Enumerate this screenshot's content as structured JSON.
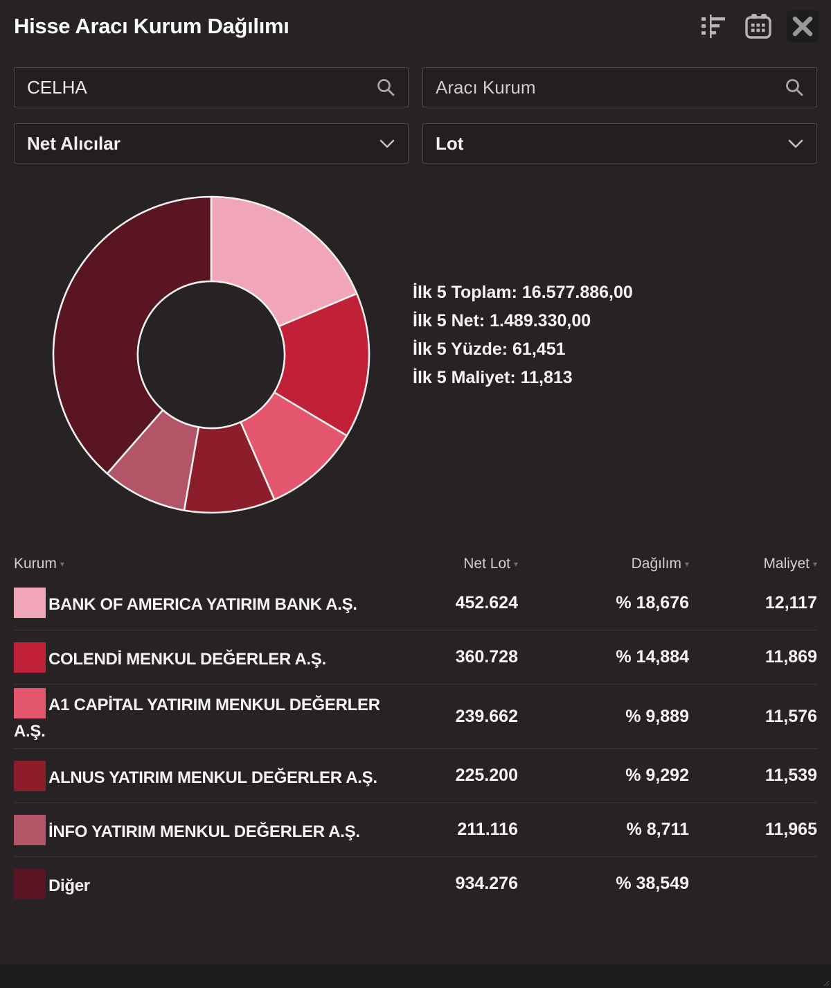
{
  "window": {
    "title": "Hisse Aracı Kurum Dağılımı"
  },
  "filters": {
    "symbol_input": {
      "value": "CELHA"
    },
    "broker_input": {
      "placeholder": "Aracı Kurum"
    },
    "side_select": {
      "value": "Net Alıcılar"
    },
    "unit_select": {
      "value": "Lot"
    }
  },
  "summary": [
    {
      "label": "İlk 5 Toplam:",
      "value": "16.577.886,00"
    },
    {
      "label": "İlk 5 Net:",
      "value": "1.489.330,00"
    },
    {
      "label": "İlk 5 Yüzde:",
      "value": "61,451"
    },
    {
      "label": "İlk 5 Maliyet:",
      "value": "11,813"
    }
  ],
  "chart_data": {
    "type": "pie",
    "subtype": "donut",
    "title": "",
    "legend_position": "none",
    "start_angle_deg": 0,
    "direction": "clockwise",
    "inner_radius_ratio": 0.465,
    "labels": [
      "BANK OF AMERICA YATIRIM BANK A.Ş.",
      "COLENDİ MENKUL DEĞERLER A.Ş.",
      "A1 CAPİTAL YATIRIM MENKUL DEĞERLER A.Ş.",
      "ALNUS YATIRIM MENKUL DEĞERLER A.Ş.",
      "İNFO YATIRIM MENKUL DEĞERLER A.Ş.",
      "Diğer"
    ],
    "values": [
      18.676,
      14.884,
      9.889,
      9.292,
      8.711,
      38.549
    ],
    "net_lot": [
      452624,
      360728,
      239662,
      225200,
      211116,
      934276
    ],
    "colors": [
      "#f0a6b8",
      "#c02138",
      "#e4566d",
      "#8c1e2c",
      "#b25566",
      "#591522"
    ],
    "stroke_color": "#f2efef"
  },
  "table": {
    "sort_indicator": "▾",
    "columns": [
      {
        "key": "kurum",
        "label": "Kurum"
      },
      {
        "key": "net-lot",
        "label": "Net Lot"
      },
      {
        "key": "dagilim",
        "label": "Dağılım"
      },
      {
        "key": "maliyet",
        "label": "Maliyet"
      }
    ],
    "rows": [
      {
        "name": "BANK OF AMERICA YATIRIM BANK A.Ş.",
        "net_lot": "452.624",
        "dagilim": "% 18,676",
        "maliyet": "12,117",
        "color": "#f0a6b8"
      },
      {
        "name": "COLENDİ MENKUL DEĞERLER A.Ş.",
        "net_lot": "360.728",
        "dagilim": "% 14,884",
        "maliyet": "11,869",
        "color": "#c02138"
      },
      {
        "name": "A1 CAPİTAL YATIRIM MENKUL DEĞERLER A.Ş.",
        "net_lot": "239.662",
        "dagilim": "% 9,889",
        "maliyet": "11,576",
        "color": "#e4566d"
      },
      {
        "name": "ALNUS YATIRIM MENKUL DEĞERLER A.Ş.",
        "net_lot": "225.200",
        "dagilim": "% 9,292",
        "maliyet": "11,539",
        "color": "#8c1e2c"
      },
      {
        "name": "İNFO YATIRIM MENKUL DEĞERLER A.Ş.",
        "net_lot": "211.116",
        "dagilim": "% 8,711",
        "maliyet": "11,965",
        "color": "#b25566"
      },
      {
        "name": "Diğer",
        "net_lot": "934.276",
        "dagilim": "% 38,549",
        "maliyet": "",
        "color": "#591522"
      }
    ]
  }
}
